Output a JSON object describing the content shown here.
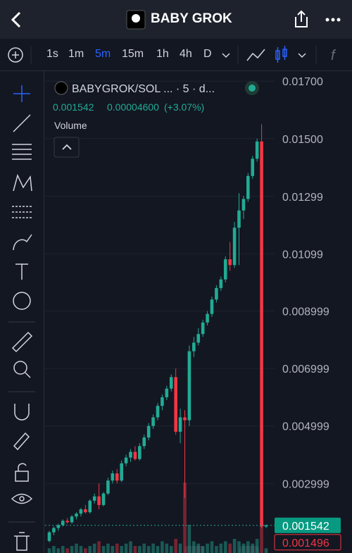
{
  "header": {
    "title": "BABY GROK"
  },
  "toolbar": {
    "intervals": [
      "1s",
      "1m",
      "5m",
      "15m",
      "1h",
      "4h",
      "D"
    ],
    "function_label": "f"
  },
  "legend": {
    "symbol": "BABYGROK/SOL ... · 5 · d...",
    "price": "0.001542",
    "change": "0.00004600",
    "change_pct": "(+3.07%)",
    "volume_label": "Volume"
  },
  "chart_data": {
    "type": "candlestick",
    "up_color": "#22ab94",
    "down_color": "#f23645",
    "open": [
      0.001,
      0.0013,
      0.00145,
      0.00155,
      0.0017,
      0.00165,
      0.00185,
      0.00195,
      0.0021,
      0.002,
      0.0024,
      0.00255,
      0.00225,
      0.00265,
      0.0031,
      0.00335,
      0.0031,
      0.0037,
      0.0039,
      0.0041,
      0.00385,
      0.0043,
      0.0046,
      0.005,
      0.0053,
      0.0057,
      0.006,
      0.0063,
      0.0067,
      0.0048,
      0.0053,
      0.0052,
      0.0076,
      0.0079,
      0.0082,
      0.0086,
      0.0089,
      0.0094,
      0.0098,
      0.0101,
      0.0108,
      0.0106,
      0.0119,
      0.0125,
      0.0129,
      0.0137,
      0.0143,
      0.0149,
      0.0015
    ],
    "high": [
      0.00135,
      0.0015,
      0.0016,
      0.00175,
      0.0018,
      0.0019,
      0.002,
      0.00215,
      0.00225,
      0.00245,
      0.00265,
      0.003,
      0.0027,
      0.0032,
      0.00345,
      0.0035,
      0.0038,
      0.004,
      0.0042,
      0.0043,
      0.0044,
      0.0047,
      0.0051,
      0.0054,
      0.0058,
      0.0061,
      0.0064,
      0.0068,
      0.007,
      0.0056,
      0.00555,
      0.0078,
      0.0081,
      0.0084,
      0.0087,
      0.009,
      0.0095,
      0.0099,
      0.0102,
      0.0109,
      0.0114,
      0.0121,
      0.0131,
      0.013,
      0.0138,
      0.0144,
      0.015,
      0.0155,
      0.00158
    ],
    "low": [
      0.00095,
      0.0012,
      0.00135,
      0.0015,
      0.0016,
      0.0016,
      0.00175,
      0.00185,
      0.00195,
      0.00195,
      0.0023,
      0.0021,
      0.0022,
      0.0026,
      0.003,
      0.003,
      0.00305,
      0.0036,
      0.00375,
      0.0038,
      0.0038,
      0.0042,
      0.0045,
      0.0049,
      0.0052,
      0.00555,
      0.0059,
      0.0062,
      0.0047,
      0.0044,
      0.0025,
      0.005,
      0.0074,
      0.0078,
      0.0081,
      0.0085,
      0.0088,
      0.0093,
      0.0097,
      0.01,
      0.0104,
      0.0105,
      0.0106,
      0.0122,
      0.0128,
      0.0136,
      0.0142,
      0.00145,
      0.00145
    ],
    "close": [
      0.0013,
      0.00145,
      0.00155,
      0.0017,
      0.00165,
      0.00185,
      0.00195,
      0.0021,
      0.002,
      0.0024,
      0.00255,
      0.00225,
      0.00265,
      0.0031,
      0.00335,
      0.0031,
      0.0037,
      0.0039,
      0.0041,
      0.00385,
      0.0043,
      0.0046,
      0.005,
      0.0053,
      0.0057,
      0.006,
      0.0063,
      0.0067,
      0.0048,
      0.0053,
      0.0052,
      0.0076,
      0.0079,
      0.0082,
      0.0086,
      0.0089,
      0.0094,
      0.0098,
      0.0101,
      0.0108,
      0.0106,
      0.0119,
      0.0125,
      0.0129,
      0.0137,
      0.0143,
      0.0149,
      0.0015,
      0.00154
    ],
    "volume": [
      2,
      3,
      2,
      3,
      2,
      3,
      4,
      3,
      2,
      3,
      4,
      5,
      3,
      4,
      3,
      4,
      3,
      4,
      5,
      3,
      3,
      4,
      3,
      4,
      3,
      5,
      4,
      3,
      6,
      4,
      30,
      12,
      5,
      4,
      3,
      4,
      5,
      3,
      4,
      5,
      4,
      6,
      5,
      4,
      5,
      4,
      6,
      14,
      2
    ],
    "ylim": [
      0.00058,
      0.01725
    ],
    "yticks": [
      {
        "value": 0.017,
        "label": "0.01700"
      },
      {
        "value": 0.015,
        "label": "0.01500"
      },
      0.01299,
      0.01099,
      0.008999,
      0.006999,
      0.004999,
      0.002999
    ],
    "last_price": {
      "value": 0.001542,
      "label": "0.001542"
    },
    "prev_price": {
      "value": 0.001496,
      "label": "0.001496"
    },
    "grid": true
  }
}
